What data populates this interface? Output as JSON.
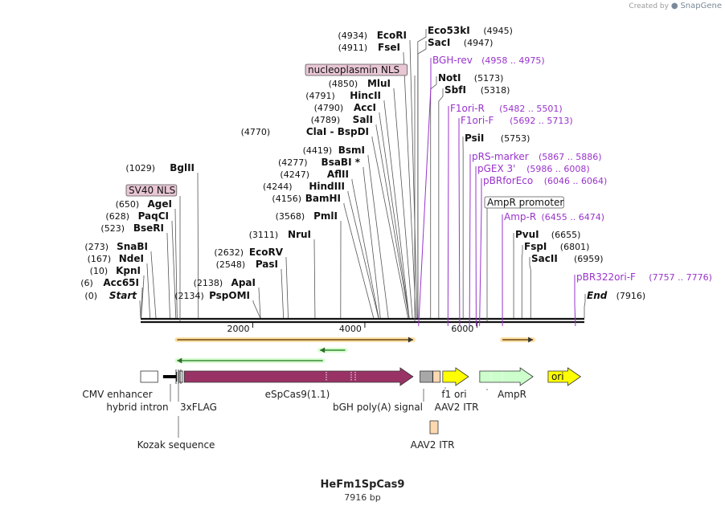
{
  "watermark": {
    "prefix": "Created by",
    "brand": "SnapGene"
  },
  "map": {
    "name": "HeFm1SpCas9",
    "length_label": "7916 bp",
    "length": 7916
  },
  "ruler": {
    "ticks": [
      {
        "pos": 2000,
        "label": "2000"
      },
      {
        "pos": 4000,
        "label": "4000"
      },
      {
        "pos": 6000,
        "label": "6000"
      }
    ]
  },
  "sites": [
    {
      "pos": 0,
      "name": "Start",
      "coord": "(0)",
      "style": "italic"
    },
    {
      "pos": 6,
      "name": "Acc65I",
      "coord": "(6)"
    },
    {
      "pos": 10,
      "name": "KpnI",
      "coord": "(10)"
    },
    {
      "pos": 167,
      "name": "NdeI",
      "coord": "(167)"
    },
    {
      "pos": 273,
      "name": "SnaBI",
      "coord": "(273)"
    },
    {
      "pos": 523,
      "name": "BseRI",
      "coord": "(523)"
    },
    {
      "pos": 628,
      "name": "PaqCI",
      "coord": "(628)"
    },
    {
      "pos": 650,
      "name": "AgeI",
      "coord": "(650)"
    },
    {
      "pos": 1029,
      "name": "BglII",
      "coord": "(1029)"
    },
    {
      "pos": 2134,
      "name": "PspOMI",
      "coord": "(2134)"
    },
    {
      "pos": 2138,
      "name": "ApaI",
      "coord": "(2138)"
    },
    {
      "pos": 2548,
      "name": "PasI",
      "coord": "(2548)"
    },
    {
      "pos": 2632,
      "name": "EcoRV",
      "coord": "(2632)"
    },
    {
      "pos": 3111,
      "name": "NruI",
      "coord": "(3111)"
    },
    {
      "pos": 3568,
      "name": "PmlI",
      "coord": "(3568)"
    },
    {
      "pos": 4156,
      "name": "BamHI",
      "coord": "(4156)"
    },
    {
      "pos": 4244,
      "name": "HindIII",
      "coord": "(4244)"
    },
    {
      "pos": 4247,
      "name": "AflII",
      "coord": "(4247)"
    },
    {
      "pos": 4277,
      "name": "BsaBI *",
      "coord": "(4277)"
    },
    {
      "pos": 4419,
      "name": "BsmI",
      "coord": "(4419)"
    },
    {
      "pos": 4770,
      "name": "ClaI  -  BspDI",
      "coord": "(4770)"
    },
    {
      "pos": 4789,
      "name": "SalI",
      "coord": "(4789)"
    },
    {
      "pos": 4790,
      "name": "AccI",
      "coord": "(4790)"
    },
    {
      "pos": 4791,
      "name": "HincII",
      "coord": "(4791)"
    },
    {
      "pos": 4850,
      "name": "MluI",
      "coord": "(4850)"
    },
    {
      "pos": 4911,
      "name": "FseI",
      "coord": "(4911)"
    },
    {
      "pos": 4934,
      "name": "EcoRI",
      "coord": "(4934)"
    },
    {
      "pos": 4945,
      "name": "Eco53kI",
      "coord": "(4945)"
    },
    {
      "pos": 4947,
      "name": "SacI",
      "coord": "(4947)"
    },
    {
      "pos": 5173,
      "name": "NotI",
      "coord": "(5173)"
    },
    {
      "pos": 5318,
      "name": "SbfI",
      "coord": "(5318)"
    },
    {
      "pos": 5753,
      "name": "PsiI",
      "coord": "(5753)"
    },
    {
      "pos": 6655,
      "name": "PvuI",
      "coord": "(6655)"
    },
    {
      "pos": 6801,
      "name": "FspI",
      "coord": "(6801)"
    },
    {
      "pos": 6959,
      "name": "SacII",
      "coord": "(6959)"
    },
    {
      "pos": 7916,
      "name": "End",
      "coord": "(7916)",
      "style": "italic"
    }
  ],
  "primers": [
    {
      "pos": 4958,
      "name": "BGH-rev",
      "range": "(4958 .. 4975)"
    },
    {
      "pos": 5482,
      "name": "F1ori-R",
      "range": "(5482 .. 5501)"
    },
    {
      "pos": 5692,
      "name": "F1ori-F",
      "range": "(5692 .. 5713)"
    },
    {
      "pos": 5867,
      "name": "pRS-marker",
      "range": "(5867 .. 5886)"
    },
    {
      "pos": 5986,
      "name": "pGEX 3'",
      "range": "(5986 .. 6008)"
    },
    {
      "pos": 6046,
      "name": "pBRforEco",
      "range": "(6046 .. 6064)"
    },
    {
      "pos": 6455,
      "name": "Amp-R",
      "range": "(6455 .. 6474)"
    },
    {
      "pos": 7757,
      "name": "pBR322ori-F",
      "range": "(7757 .. 7776)"
    }
  ],
  "boxed_features": [
    {
      "pos": 4800,
      "name": "nucleoplasmin NLS",
      "fill": "#e8c6d4"
    },
    {
      "pos": 740,
      "name": "SV40 NLS",
      "fill": "#e8c6d4"
    },
    {
      "pos": 6100,
      "name": "AmpR promoter",
      "fill": "#ffffff"
    }
  ],
  "features": [
    {
      "name": "CMV enhancer",
      "start": 0,
      "end": 305,
      "color": "#ffffff",
      "shape": "box"
    },
    {
      "name": "hybrid intron",
      "start": 400,
      "end": 640,
      "color": "#000000",
      "shape": "line"
    },
    {
      "name": "3xFLAG",
      "start": 690,
      "end": 755,
      "color": "#ffffff",
      "shape": "box"
    },
    {
      "name": "eSpCas9(1.1)",
      "start": 780,
      "end": 4860,
      "color": "#993366",
      "shape": "arrow"
    },
    {
      "name": "bGH poly(A) signal",
      "start": 4985,
      "end": 5210,
      "color": "#a8a8a8",
      "shape": "box"
    },
    {
      "name": "AAV2 ITR",
      "start": 5215,
      "end": 5345,
      "color": "#ffd8b0",
      "shape": "box"
    },
    {
      "name": "f1 ori",
      "start": 5390,
      "end": 5850,
      "color": "#ffff00",
      "shape": "arrow"
    },
    {
      "name": "AmpR",
      "start": 6050,
      "end": 7000,
      "color": "#ccffcc",
      "shape": "arrow"
    },
    {
      "name": "ori",
      "start": 7270,
      "end": 7850,
      "color": "#ffff00",
      "shape": "arrow",
      "inside_label": "ori"
    }
  ],
  "bottom_labels": [
    {
      "text": "CMV enhancer"
    },
    {
      "text": "hybrid intron"
    },
    {
      "text": "3xFLAG"
    },
    {
      "text": "eSpCas9(1.1)"
    },
    {
      "text": "bGH poly(A) signal"
    },
    {
      "text": "f1 ori"
    },
    {
      "text": "AAV2 ITR"
    },
    {
      "text": "AmpR"
    },
    {
      "text": "Kozak sequence"
    },
    {
      "text": "AAV2 ITR"
    }
  ],
  "orf_arrows": [
    {
      "start": 650,
      "end": 4860,
      "strand": "+",
      "color": "#e8a040"
    },
    {
      "start": 6455,
      "end": 7000,
      "strand": "+",
      "color": "#e8a040"
    },
    {
      "start": 3200,
      "end": 3650,
      "strand": "-",
      "color": "#2d8a2d"
    },
    {
      "start": 650,
      "end": 3250,
      "strand": "-",
      "color": "#9ad890"
    }
  ],
  "colors": {
    "backbone": "#111111",
    "enzyme_text": "#111111",
    "primer": "#9933cc",
    "leader": "#555555"
  }
}
